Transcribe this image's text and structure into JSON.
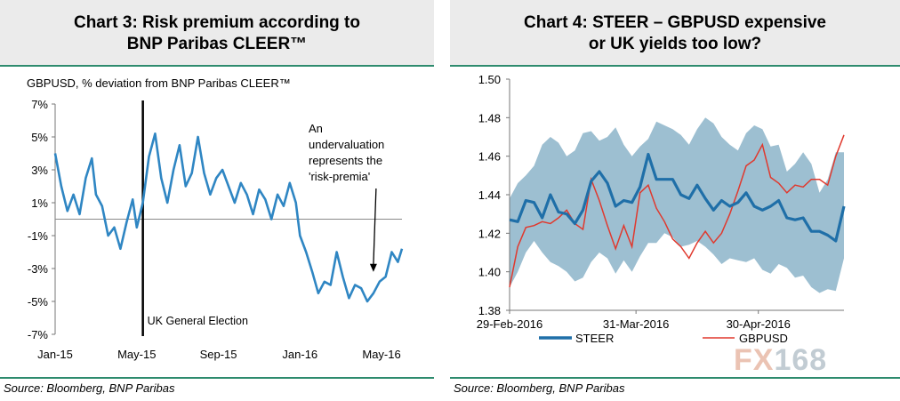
{
  "left": {
    "title_line1": "Chart 3: Risk premium according to",
    "title_line2": "BNP Paribas CLEER™",
    "source": "Source: Bloomberg, BNP Paribas"
  },
  "right": {
    "title_line1": "Chart 4: STEER – GBPUSD expensive",
    "title_line2": "or UK yields too low?",
    "source": "Source: Bloomberg, BNP Paribas"
  },
  "watermark": {
    "fx": "FX",
    "num": "168"
  },
  "colors": {
    "accent": "#2e8b6e",
    "steer": "#1f6fa8",
    "band": "#9dbfd1",
    "gbpusd": "#e0392e",
    "line3": "#2f86c3"
  },
  "chart_data": [
    {
      "type": "line",
      "title": "Chart 3: Risk premium according to BNP Paribas CLEER™",
      "ylabel": "GBPUSD, % deviation from BNP Paribas CLEER™",
      "yticks": [
        "7%",
        "5%",
        "3%",
        "1%",
        "-1%",
        "-3%",
        "-5%",
        "-7%"
      ],
      "ylim": [
        -7,
        7
      ],
      "xticks": [
        "Jan-15",
        "May-15",
        "Sep-15",
        "Jan-16",
        "May-16"
      ],
      "xlim": [
        0,
        17
      ],
      "tick_positions": [
        0,
        4,
        8,
        12,
        16
      ],
      "zero_line": 0,
      "event_line": {
        "x": 4.3,
        "label": "UK General Election"
      },
      "annotation": [
        "An",
        "undervaluation",
        "represents the",
        "'risk-premia'"
      ],
      "arrow_target": {
        "x": 15.6,
        "y": -3.2
      },
      "series": [
        {
          "name": "Risk premium",
          "x": [
            0,
            0.3,
            0.6,
            0.9,
            1.2,
            1.5,
            1.8,
            2.0,
            2.3,
            2.6,
            2.9,
            3.2,
            3.5,
            3.8,
            4.0,
            4.3,
            4.6,
            4.9,
            5.2,
            5.5,
            5.8,
            6.1,
            6.4,
            6.7,
            7.0,
            7.3,
            7.6,
            7.9,
            8.2,
            8.5,
            8.8,
            9.1,
            9.4,
            9.7,
            10.0,
            10.3,
            10.6,
            10.9,
            11.2,
            11.5,
            11.8,
            12.0,
            12.3,
            12.6,
            12.9,
            13.2,
            13.5,
            13.8,
            14.1,
            14.4,
            14.7,
            15.0,
            15.3,
            15.6,
            15.9,
            16.2,
            16.5,
            16.8,
            17.0
          ],
          "values": [
            4.0,
            2.0,
            0.5,
            1.5,
            0.3,
            2.5,
            3.7,
            1.5,
            0.8,
            -1.0,
            -0.5,
            -1.8,
            -0.2,
            1.2,
            -0.5,
            1.0,
            3.8,
            5.2,
            2.5,
            1.0,
            3.0,
            4.5,
            2.0,
            2.8,
            5.0,
            2.8,
            1.5,
            2.5,
            3.0,
            2.0,
            1.0,
            2.2,
            1.5,
            0.3,
            1.8,
            1.2,
            0.0,
            1.5,
            0.8,
            2.2,
            1.0,
            -1.0,
            -2.0,
            -3.2,
            -4.5,
            -3.8,
            -4.0,
            -2.0,
            -3.5,
            -4.8,
            -4.0,
            -4.2,
            -5.0,
            -4.5,
            -3.8,
            -3.5,
            -2.0,
            -2.6,
            -1.8
          ]
        }
      ]
    },
    {
      "type": "line",
      "title": "Chart 4: STEER – GBPUSD expensive or UK yields too low?",
      "yticks": [
        "1.50",
        "1.48",
        "1.46",
        "1.44",
        "1.42",
        "1.40",
        "1.38"
      ],
      "ylim": [
        1.38,
        1.5
      ],
      "xticks": [
        "29-Feb-2016",
        "31-Mar-2016",
        "30-Apr-2016"
      ],
      "xlim": [
        0,
        82
      ],
      "tick_positions": [
        0,
        31,
        61
      ],
      "legend": [
        "STEER",
        "GBPUSD"
      ],
      "x": [
        0,
        2,
        4,
        6,
        8,
        10,
        12,
        14,
        16,
        18,
        20,
        22,
        24,
        26,
        28,
        30,
        32,
        34,
        36,
        38,
        40,
        42,
        44,
        46,
        48,
        50,
        52,
        54,
        56,
        58,
        60,
        62,
        64,
        66,
        68,
        70,
        72,
        74,
        76,
        78,
        80,
        82
      ],
      "series": [
        {
          "name": "STEER",
          "values": [
            1.427,
            1.426,
            1.437,
            1.436,
            1.428,
            1.44,
            1.431,
            1.43,
            1.425,
            1.432,
            1.447,
            1.452,
            1.446,
            1.434,
            1.437,
            1.436,
            1.444,
            1.461,
            1.448,
            1.448,
            1.448,
            1.44,
            1.438,
            1.445,
            1.438,
            1.432,
            1.437,
            1.434,
            1.436,
            1.441,
            1.434,
            1.432,
            1.434,
            1.437,
            1.428,
            1.427,
            1.428,
            1.421,
            1.421,
            1.419,
            1.416,
            1.434
          ]
        },
        {
          "name": "GBPUSD",
          "values": [
            1.392,
            1.413,
            1.423,
            1.424,
            1.426,
            1.425,
            1.428,
            1.432,
            1.425,
            1.422,
            1.448,
            1.437,
            1.424,
            1.412,
            1.424,
            1.413,
            1.441,
            1.445,
            1.433,
            1.426,
            1.417,
            1.413,
            1.407,
            1.415,
            1.421,
            1.415,
            1.42,
            1.43,
            1.442,
            1.455,
            1.458,
            1.466,
            1.449,
            1.446,
            1.441,
            1.445,
            1.444,
            1.448,
            1.448,
            1.445,
            1.46,
            1.471
          ]
        },
        {
          "name": "Band upper",
          "values": [
            1.438,
            1.446,
            1.45,
            1.455,
            1.466,
            1.47,
            1.467,
            1.46,
            1.463,
            1.472,
            1.473,
            1.468,
            1.47,
            1.475,
            1.466,
            1.46,
            1.465,
            1.469,
            1.478,
            1.476,
            1.474,
            1.471,
            1.466,
            1.474,
            1.48,
            1.477,
            1.47,
            1.466,
            1.463,
            1.472,
            1.476,
            1.474,
            1.465,
            1.466,
            1.452,
            1.456,
            1.462,
            1.456,
            1.441,
            1.448,
            1.462,
            1.462
          ]
        },
        {
          "name": "Band lower",
          "values": [
            1.392,
            1.4,
            1.41,
            1.416,
            1.41,
            1.405,
            1.403,
            1.4,
            1.395,
            1.397,
            1.405,
            1.41,
            1.407,
            1.399,
            1.406,
            1.4,
            1.408,
            1.415,
            1.415,
            1.42,
            1.418,
            1.413,
            1.414,
            1.416,
            1.413,
            1.409,
            1.404,
            1.407,
            1.406,
            1.405,
            1.407,
            1.401,
            1.399,
            1.404,
            1.402,
            1.397,
            1.398,
            1.392,
            1.389,
            1.391,
            1.39,
            1.407
          ]
        }
      ]
    }
  ]
}
